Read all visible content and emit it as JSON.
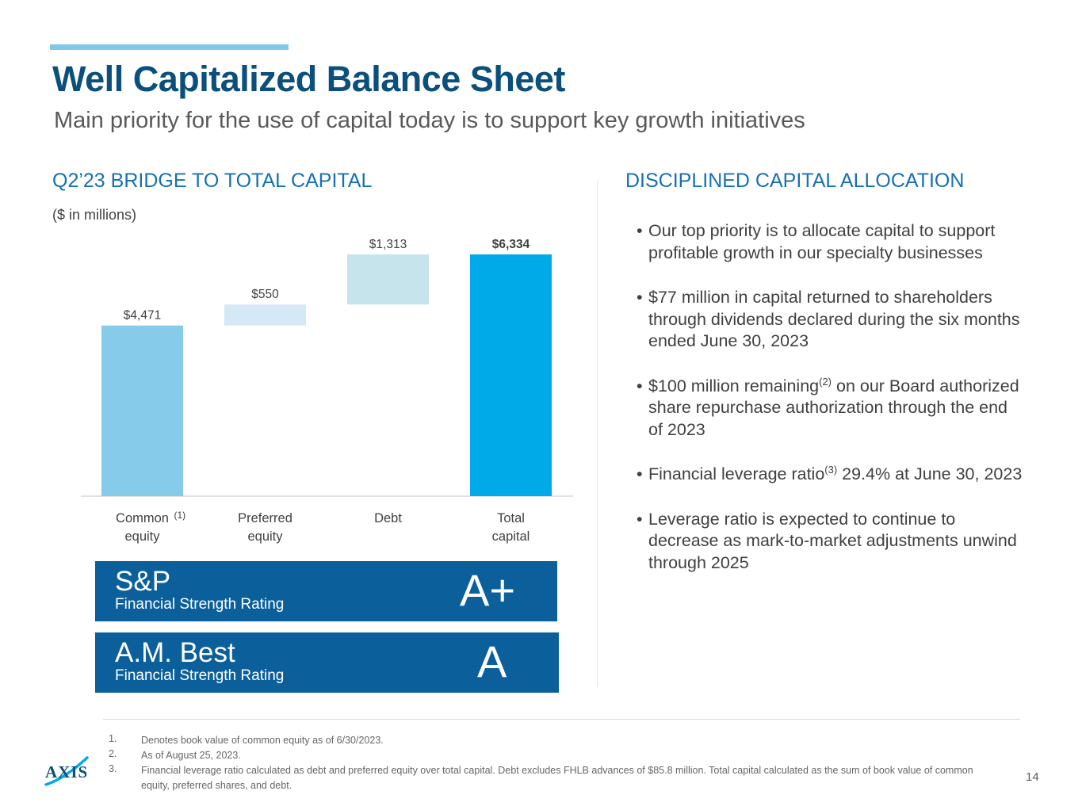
{
  "header": {
    "title": "Well Capitalized Balance Sheet",
    "subtitle": "Main priority for the use of capital today is to support key growth initiatives"
  },
  "left": {
    "heading": "Q2’23 BRIDGE TO TOTAL CAPITAL",
    "units": "($ in millions)"
  },
  "chart_data": {
    "type": "bar",
    "subtype": "waterfall",
    "categories": [
      [
        "Common",
        "equity"
      ],
      [
        "Preferred",
        "equity"
      ],
      [
        "Debt"
      ],
      [
        "Total",
        "capital"
      ]
    ],
    "footnote_marks": [
      "(1)",
      "",
      "",
      ""
    ],
    "values": [
      4471,
      550,
      1313,
      6334
    ],
    "labels": [
      "$4,471",
      "$550",
      "$1,313",
      "$6,334"
    ],
    "colors": [
      "#86ccea",
      "#d4e8f6",
      "#c6e4ec",
      "#00a9e8"
    ],
    "bold_labels": [
      false,
      false,
      false,
      true
    ],
    "ylim": [
      0,
      6334
    ]
  },
  "ratings": [
    {
      "agency": "S&P",
      "desc": "Financial Strength Rating",
      "grade": "A+"
    },
    {
      "agency": "A.M. Best",
      "desc": "Financial Strength Rating",
      "grade": "A"
    }
  ],
  "right": {
    "heading": "DISCIPLINED CAPITAL ALLOCATION",
    "bullets": [
      {
        "pre": "Our top priority is to allocate capital to support profitable growth in our specialty businesses",
        "sup": "",
        "post": ""
      },
      {
        "pre": "$77 million in capital returned to shareholders through dividends declared during the six months ended June 30, 2023",
        "sup": "",
        "post": ""
      },
      {
        "pre": "$100 million remaining",
        "sup": "(2)",
        "post": " on our Board authorized share repurchase authorization through the end of 2023"
      },
      {
        "pre": "Financial leverage ratio",
        "sup": "(3)",
        "post": " 29.4% at June 30, 2023"
      },
      {
        "pre": "Leverage ratio is expected to continue to decrease as mark-to-market adjustments unwind through 2025",
        "sup": "",
        "post": ""
      }
    ]
  },
  "footnotes": [
    {
      "num": "1.",
      "text": "Denotes book value of common equity as of 6/30/2023."
    },
    {
      "num": "2.",
      "text": "As of August 25, 2023."
    },
    {
      "num": "3.",
      "text": "Financial leverage ratio calculated as debt and preferred equity over total capital. Debt excludes FHLB advances of $85.8 million. Total capital calculated as the sum of book value of common equity, preferred shares, and debt."
    }
  ],
  "logo": {
    "text": "AXIS",
    "color": "#0b4f7c",
    "accent": "#00a9e8"
  },
  "page_number": "14"
}
